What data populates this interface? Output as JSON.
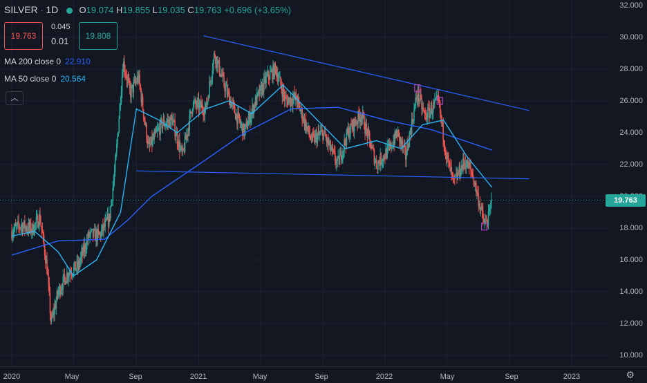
{
  "header": {
    "symbol": "SILVER",
    "interval": "1D",
    "ohlc": {
      "o_label": "O",
      "o": "19.074",
      "h_label": "H",
      "h": "19.855",
      "l_label": "L",
      "l": "19.035",
      "c_label": "C",
      "c": "19.763",
      "change": "+0.696 (+3.65%)"
    },
    "status_color": "#26a69a"
  },
  "trade": {
    "sell": "19.763",
    "spread_top": "0.045",
    "spread_bottom": "0.01",
    "buy": "19.808"
  },
  "indicators": [
    {
      "label": "MA 200 close 0",
      "value": "22.910",
      "color": "#2962ff"
    },
    {
      "label": "MA 50 close 0",
      "value": "20.564",
      "color": "#29b6f6"
    }
  ],
  "collapse_icon": "chevron-up-icon",
  "price_axis": {
    "ticks": [
      "32.000",
      "30.000",
      "28.000",
      "26.000",
      "24.000",
      "22.000",
      "20.000",
      "18.000",
      "16.000",
      "14.000",
      "12.000",
      "10.000"
    ],
    "last_price": "19.763"
  },
  "time_axis": {
    "ticks": [
      "2020",
      "May",
      "Sep",
      "2021",
      "May",
      "Sep",
      "2022",
      "May",
      "Sep",
      "2023"
    ]
  },
  "settings_icon": "gear-icon",
  "colors": {
    "up": "#26a69a",
    "down": "#ef5350",
    "ma200": "#2962ff",
    "ma50": "#29b6f6",
    "trendline": "#2962ff",
    "background": "#131722"
  },
  "chart_data": {
    "type": "candlestick",
    "symbol": "SILVER",
    "interval": "1D",
    "ylim": [
      10,
      32
    ],
    "x_range": [
      "2020-01",
      "2023-01"
    ],
    "price_path": [
      [
        "2020-01-01",
        17.8
      ],
      [
        "2020-01-20",
        18.2
      ],
      [
        "2020-02-10",
        17.9
      ],
      [
        "2020-02-25",
        18.7
      ],
      [
        "2020-03-10",
        15.5
      ],
      [
        "2020-03-18",
        12.0
      ],
      [
        "2020-04-01",
        14.0
      ],
      [
        "2020-04-20",
        15.2
      ],
      [
        "2020-05-10",
        15.6
      ],
      [
        "2020-06-01",
        17.6
      ],
      [
        "2020-06-20",
        17.5
      ],
      [
        "2020-07-10",
        18.6
      ],
      [
        "2020-07-22",
        22.0
      ],
      [
        "2020-08-06",
        28.5
      ],
      [
        "2020-08-20",
        26.5
      ],
      [
        "2020-09-05",
        27.5
      ],
      [
        "2020-09-25",
        23.0
      ],
      [
        "2020-10-20",
        24.5
      ],
      [
        "2020-11-10",
        24.8
      ],
      [
        "2020-11-30",
        22.5
      ],
      [
        "2020-12-20",
        25.8
      ],
      [
        "2021-01-15",
        25.5
      ],
      [
        "2021-02-01",
        29.0
      ],
      [
        "2021-02-20",
        27.0
      ],
      [
        "2021-03-10",
        25.5
      ],
      [
        "2021-03-31",
        24.0
      ],
      [
        "2021-04-20",
        25.8
      ],
      [
        "2021-05-15",
        27.5
      ],
      [
        "2021-06-01",
        28.0
      ],
      [
        "2021-06-20",
        26.0
      ],
      [
        "2021-07-10",
        26.2
      ],
      [
        "2021-08-10",
        23.5
      ],
      [
        "2021-09-01",
        24.0
      ],
      [
        "2021-09-30",
        22.0
      ],
      [
        "2021-10-20",
        24.0
      ],
      [
        "2021-11-15",
        25.2
      ],
      [
        "2021-12-15",
        22.0
      ],
      [
        "2022-01-10",
        23.0
      ],
      [
        "2022-01-25",
        24.0
      ],
      [
        "2022-02-10",
        22.5
      ],
      [
        "2022-03-05",
        26.5
      ],
      [
        "2022-03-20",
        25.0
      ],
      [
        "2022-04-15",
        26.0
      ],
      [
        "2022-05-01",
        22.5
      ],
      [
        "2022-05-15",
        20.8
      ],
      [
        "2022-06-05",
        22.2
      ],
      [
        "2022-06-20",
        21.5
      ],
      [
        "2022-07-05",
        19.5
      ],
      [
        "2022-07-14",
        18.2
      ],
      [
        "2022-07-22",
        18.6
      ],
      [
        "2022-07-29",
        19.763
      ]
    ],
    "ma200": [
      [
        "2020-01-01",
        16.3
      ],
      [
        "2020-04-01",
        17.2
      ],
      [
        "2020-07-01",
        17.3
      ],
      [
        "2020-08-15",
        18.5
      ],
      [
        "2020-10-01",
        20.0
      ],
      [
        "2021-01-01",
        22.0
      ],
      [
        "2021-04-01",
        24.0
      ],
      [
        "2021-07-01",
        25.5
      ],
      [
        "2021-10-01",
        25.6
      ],
      [
        "2022-01-01",
        24.8
      ],
      [
        "2022-04-01",
        24.2
      ],
      [
        "2022-07-29",
        22.91
      ]
    ],
    "ma50": [
      [
        "2020-01-01",
        17.5
      ],
      [
        "2020-02-15",
        17.8
      ],
      [
        "2020-04-01",
        16.5
      ],
      [
        "2020-05-01",
        15.0
      ],
      [
        "2020-06-15",
        16.0
      ],
      [
        "2020-08-01",
        19.0
      ],
      [
        "2020-09-01",
        25.5
      ],
      [
        "2020-10-15",
        24.8
      ],
      [
        "2020-11-20",
        24.0
      ],
      [
        "2021-01-15",
        25.5
      ],
      [
        "2021-03-01",
        26.0
      ],
      [
        "2021-04-15",
        25.2
      ],
      [
        "2021-06-15",
        27.0
      ],
      [
        "2021-08-15",
        25.0
      ],
      [
        "2021-10-15",
        23.0
      ],
      [
        "2021-12-15",
        23.5
      ],
      [
        "2022-02-01",
        23.0
      ],
      [
        "2022-03-15",
        24.5
      ],
      [
        "2022-04-25",
        24.8
      ],
      [
        "2022-06-10",
        22.5
      ],
      [
        "2022-07-29",
        20.564
      ]
    ],
    "trendlines": [
      {
        "from": [
          "2021-01-10",
          30.1
        ],
        "to": [
          "2022-10-10",
          25.4
        ]
      },
      {
        "from": [
          "2020-09-01",
          21.6
        ],
        "to": [
          "2022-10-10",
          21.1
        ]
      }
    ],
    "markers": [
      {
        "date": "2022-03-05",
        "price": 26.8
      },
      {
        "date": "2022-04-18",
        "price": 26.0
      },
      {
        "date": "2022-07-14",
        "price": 18.1
      }
    ],
    "last_price": 19.763
  }
}
